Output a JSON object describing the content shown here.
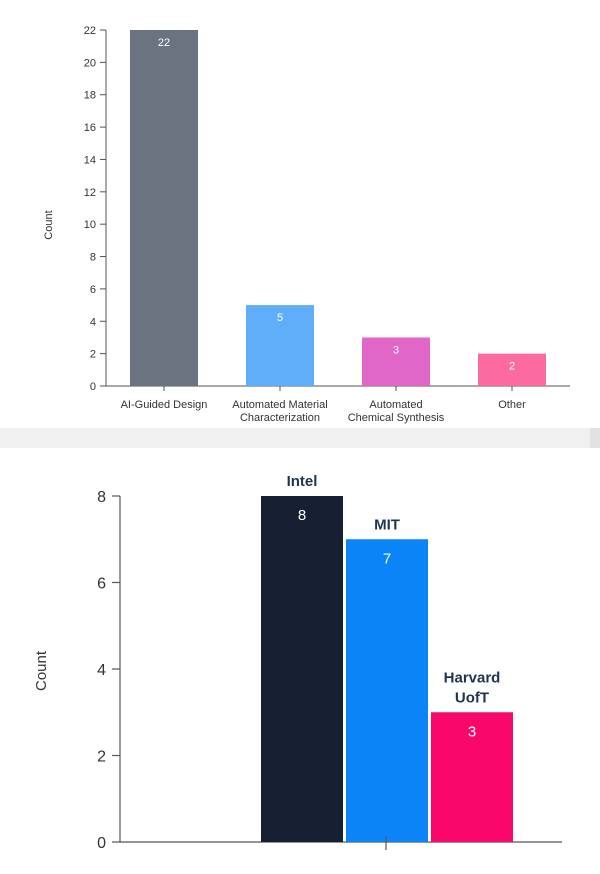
{
  "chart_data": [
    {
      "type": "bar",
      "categories": [
        "AI-Guided Design",
        "Automated Material Characterization",
        "Automated Chemical Synthesis",
        "Other"
      ],
      "category_lines": [
        [
          "AI-Guided Design"
        ],
        [
          "Automated Material",
          "Characterization"
        ],
        [
          "Automated",
          "Chemical Synthesis"
        ],
        [
          "Other"
        ]
      ],
      "values": [
        22,
        5,
        3,
        2
      ],
      "colors": [
        "#6b7280",
        "#60aefa",
        "#e067c8",
        "#fb6ba0"
      ],
      "ylabel": "Count",
      "ylim": [
        0,
        22
      ],
      "yticks": [
        0,
        2,
        4,
        6,
        8,
        10,
        12,
        14,
        16,
        18,
        20,
        22
      ],
      "grid": false,
      "data_labels": true
    },
    {
      "type": "bar",
      "categories": [
        "Intel",
        "MIT",
        "Harvard UofT"
      ],
      "category_lines": [
        [
          "Intel"
        ],
        [
          "MIT"
        ],
        [
          "Harvard",
          "UofT"
        ]
      ],
      "values": [
        8,
        7,
        3
      ],
      "colors": [
        "#172033",
        "#0a84f7",
        "#f9086c"
      ],
      "ylabel": "Count",
      "ylim": [
        0,
        8
      ],
      "yticks": [
        0,
        2,
        4,
        6,
        8
      ],
      "grid": false,
      "data_labels": true
    }
  ]
}
